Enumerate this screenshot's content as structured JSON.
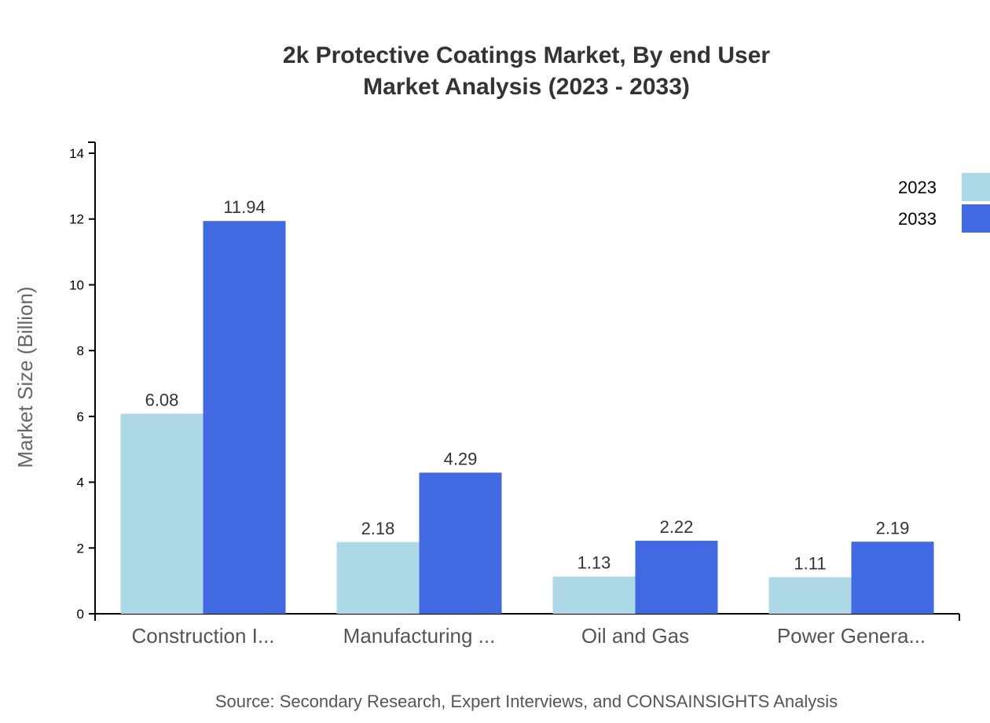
{
  "chart_data": {
    "type": "bar",
    "title": [
      "2k Protective Coatings Market, By end User",
      "Market Analysis (2023 - 2033)"
    ],
    "xlabel": "",
    "ylabel": "Market Size (Billion)",
    "ylim": [
      0,
      14
    ],
    "yticks": [
      0,
      2,
      4,
      6,
      8,
      10,
      12,
      14
    ],
    "categories": [
      "Construction I...",
      "Manufacturing ...",
      "Oil and Gas",
      "Power Genera..."
    ],
    "series": [
      {
        "name": "2023",
        "color": "#add8e6",
        "values": [
          6.08,
          2.18,
          1.13,
          1.11
        ]
      },
      {
        "name": "2033",
        "color": "#4169e1",
        "values": [
          11.94,
          4.29,
          2.22,
          2.19
        ]
      }
    ],
    "legend_position": "top-right",
    "grid": false,
    "source": "Source: Secondary Research, Expert Interviews, and CONSAINSIGHTS Analysis"
  }
}
